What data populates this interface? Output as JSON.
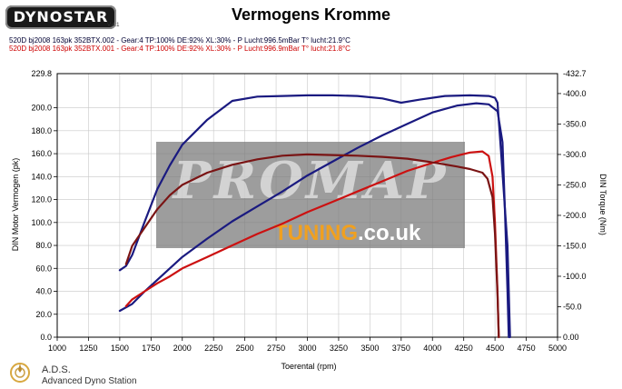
{
  "logo_text": "DYNOSTAR",
  "logo_mark": "V.4.1",
  "runs": [
    {
      "text": "520D bj2008 163pk 352BTX.002 - Gear:4 TP:100% DE:92% XL:30%   - P Lucht:996.5mBar T° lucht:21.9°C",
      "color": "#000033"
    },
    {
      "text": "520D bj2008 163pk 352BTX.001 - Gear:4 TP:100% DE:92% XL:30%   - P Lucht:996.9mBar T° lucht:21.8°C",
      "color": "#cc0000"
    }
  ],
  "watermark": {
    "big": "PROMAP",
    "small_colored": "TUNING",
    "small_suffix": ".co.uk"
  },
  "footer": {
    "name": "A.D.S.",
    "subtitle": "Advanced Dyno Station"
  },
  "colors": {
    "blue": "#1a1a80",
    "red": "#cc1111",
    "darkred": "#7a1414",
    "grid": "#c8c8c8"
  },
  "chart_data": {
    "type": "line",
    "title": "Vermogens Kromme",
    "xlabel": "Toerental (rpm)",
    "ylabel": "DIN Motor Vermogen (pk)",
    "y2label": "DIN Torque (Nm)",
    "xlim": [
      1000,
      5000
    ],
    "ylim": [
      0,
      229.8
    ],
    "y2lim": [
      0,
      432.7
    ],
    "x_ticks": [
      1000,
      1250,
      1500,
      1750,
      2000,
      2250,
      2500,
      2750,
      3000,
      3250,
      3500,
      3750,
      4000,
      4250,
      4500,
      4750,
      5000
    ],
    "y_ticks": [
      0,
      20,
      40,
      60,
      80,
      100,
      120,
      140,
      160,
      180,
      200
    ],
    "y_tick_labels": [
      "0.0",
      "20.0",
      "40.0",
      "60.0",
      "80.0",
      "100.0",
      "120.0",
      "140.0",
      "160.0",
      "180.0",
      "200.0"
    ],
    "y_top_label": "229.8",
    "y2_ticks": [
      0,
      50,
      100,
      150,
      200,
      250,
      300,
      350,
      400
    ],
    "y2_tick_labels": [
      "0.00",
      "-50.0",
      "-100.0",
      "-150.0",
      "-200.0",
      "-250.0",
      "-300.0",
      "-350.0",
      "-400.0"
    ],
    "y2_top_label": "-432.7",
    "series": [
      {
        "run": "352BTX.002",
        "kind": "power",
        "axis": "left",
        "color": "blue",
        "x": [
          1500,
          1600,
          1700,
          1800,
          1900,
          2000,
          2200,
          2400,
          2600,
          2800,
          3000,
          3200,
          3400,
          3600,
          3800,
          4000,
          4200,
          4350,
          4450,
          4520,
          4560,
          4580,
          4600,
          4610
        ],
        "y": [
          23,
          29,
          40,
          50,
          60,
          70,
          86,
          101,
          114,
          127,
          141,
          153,
          165,
          176,
          186,
          196,
          202,
          204,
          203,
          197,
          170,
          110,
          40,
          0
        ]
      },
      {
        "run": "352BTX.002",
        "kind": "torque",
        "axis": "right",
        "color": "blue",
        "x": [
          1500,
          1550,
          1600,
          1700,
          1800,
          1900,
          2000,
          2200,
          2400,
          2600,
          2800,
          3000,
          3200,
          3400,
          3600,
          3750,
          3900,
          4100,
          4300,
          4450,
          4500,
          4520,
          4550,
          4600,
          4620
        ],
        "y": [
          110,
          117,
          135,
          190,
          243,
          282,
          316,
          357,
          388,
          395,
          396,
          397,
          397,
          396,
          392,
          385,
          390,
          396,
          397,
          396,
          393,
          385,
          300,
          150,
          0
        ]
      },
      {
        "run": "352BTX.001",
        "kind": "power",
        "axis": "left",
        "color": "red",
        "x": [
          1550,
          1600,
          1700,
          1800,
          1900,
          2000,
          2200,
          2400,
          2600,
          2800,
          3000,
          3200,
          3400,
          3600,
          3800,
          4000,
          4150,
          4300,
          4400,
          4450,
          4480,
          4500,
          4520,
          4530
        ],
        "y": [
          27,
          33,
          40,
          47,
          53,
          60,
          70,
          80,
          90,
          99,
          109,
          118,
          127,
          136,
          145,
          152,
          157,
          161,
          162,
          158,
          140,
          100,
          40,
          0
        ]
      },
      {
        "run": "352BTX.001",
        "kind": "torque",
        "axis": "right",
        "color": "darkred",
        "x": [
          1550,
          1600,
          1650,
          1700,
          1800,
          1900,
          2000,
          2200,
          2400,
          2600,
          2800,
          3000,
          3200,
          3400,
          3600,
          3800,
          4000,
          4200,
          4300,
          4400,
          4440,
          4480,
          4500,
          4520,
          4530
        ],
        "y": [
          120,
          150,
          165,
          180,
          210,
          233,
          250,
          270,
          283,
          292,
          298,
          300,
          299,
          298,
          296,
          293,
          287,
          280,
          276,
          270,
          260,
          230,
          170,
          70,
          0
        ]
      }
    ]
  }
}
